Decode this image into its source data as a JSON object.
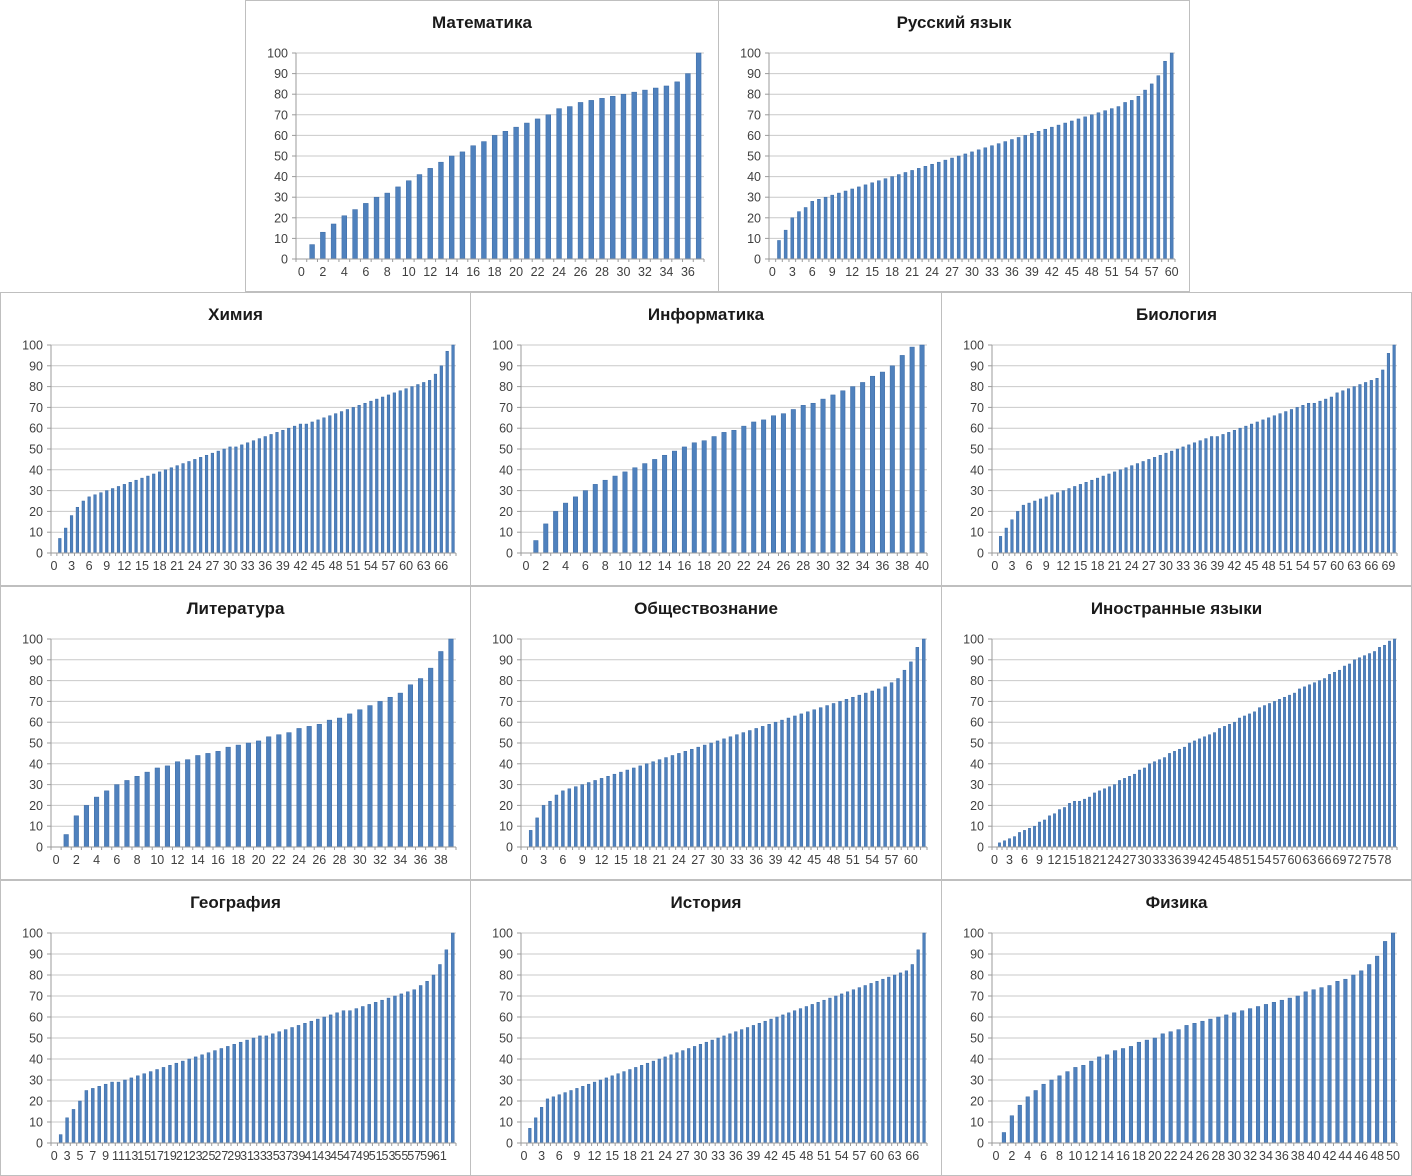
{
  "chart_defaults": {
    "bar_color": "#4f81bd",
    "bar_edge_color": "#3a6aa5",
    "gridline_color": "#c9c9c9",
    "axis_color": "#9b9b9b",
    "tick_label_color": "#3f3f3f",
    "title_color": "#1a1a1a",
    "ylim": [
      0,
      100
    ],
    "y_tick_step": 10,
    "grid": true,
    "legend": "none"
  },
  "chart_data": [
    {
      "type": "bar",
      "title": "Математика",
      "xlabel": "",
      "ylabel": "",
      "ylim": [
        0,
        100
      ],
      "x_tick_labels": [
        "0",
        "2",
        "4",
        "6",
        "8",
        "10",
        "12",
        "14",
        "16",
        "18",
        "20",
        "22",
        "24",
        "26",
        "28",
        "30",
        "32",
        "34",
        "36"
      ],
      "values": [
        0,
        7,
        13,
        17,
        21,
        24,
        27,
        30,
        32,
        35,
        38,
        41,
        44,
        47,
        50,
        52,
        55,
        57,
        60,
        62,
        64,
        66,
        68,
        70,
        73,
        74,
        76,
        77,
        78,
        79,
        80,
        81,
        82,
        83,
        84,
        86,
        90,
        100
      ]
    },
    {
      "type": "bar",
      "title": "Русский язык",
      "xlabel": "",
      "ylabel": "",
      "ylim": [
        0,
        100
      ],
      "x_tick_labels": [
        "0",
        "3",
        "6",
        "9",
        "12",
        "15",
        "18",
        "21",
        "24",
        "27",
        "30",
        "33",
        "36",
        "39",
        "42",
        "45",
        "48",
        "51",
        "54",
        "57",
        "60"
      ],
      "values": [
        0,
        9,
        14,
        20,
        23,
        25,
        28,
        29,
        30,
        31,
        32,
        33,
        34,
        35,
        36,
        37,
        38,
        39,
        40,
        41,
        42,
        43,
        44,
        45,
        46,
        47,
        48,
        49,
        50,
        51,
        52,
        53,
        54,
        55,
        56,
        57,
        58,
        59,
        60,
        61,
        62,
        63,
        64,
        65,
        66,
        67,
        68,
        69,
        70,
        71,
        72,
        73,
        74,
        76,
        77,
        79,
        82,
        85,
        89,
        96,
        100
      ]
    },
    {
      "type": "bar",
      "title": "Химия",
      "xlabel": "",
      "ylabel": "",
      "ylim": [
        0,
        100
      ],
      "x_tick_labels": [
        "0",
        "3",
        "6",
        "9",
        "12",
        "15",
        "18",
        "21",
        "24",
        "27",
        "30",
        "33",
        "36",
        "39",
        "42",
        "45",
        "48",
        "51",
        "54",
        "57",
        "60",
        "63",
        "66"
      ],
      "values": [
        0,
        7,
        12,
        18,
        22,
        25,
        27,
        28,
        29,
        30,
        31,
        32,
        33,
        34,
        35,
        36,
        37,
        38,
        39,
        40,
        41,
        42,
        43,
        44,
        45,
        46,
        47,
        48,
        49,
        50,
        51,
        51,
        52,
        53,
        54,
        55,
        56,
        57,
        58,
        59,
        60,
        61,
        62,
        62,
        63,
        64,
        65,
        66,
        67,
        68,
        69,
        70,
        71,
        72,
        73,
        74,
        75,
        76,
        77,
        78,
        79,
        80,
        81,
        82,
        83,
        86,
        90,
        97,
        100
      ]
    },
    {
      "type": "bar",
      "title": "Информатика",
      "xlabel": "",
      "ylabel": "",
      "ylim": [
        0,
        100
      ],
      "x_tick_labels": [
        "0",
        "2",
        "4",
        "6",
        "8",
        "10",
        "12",
        "14",
        "16",
        "18",
        "20",
        "22",
        "24",
        "26",
        "28",
        "30",
        "32",
        "34",
        "36",
        "38",
        "40"
      ],
      "values": [
        0,
        6,
        14,
        20,
        24,
        27,
        30,
        33,
        35,
        37,
        39,
        41,
        43,
        45,
        47,
        49,
        51,
        53,
        54,
        56,
        58,
        59,
        61,
        63,
        64,
        66,
        67,
        69,
        71,
        72,
        74,
        76,
        78,
        80,
        82,
        85,
        87,
        90,
        95,
        99,
        100
      ]
    },
    {
      "type": "bar",
      "title": "Биология",
      "xlabel": "",
      "ylabel": "",
      "ylim": [
        0,
        100
      ],
      "x_tick_labels": [
        "0",
        "3",
        "6",
        "9",
        "12",
        "15",
        "18",
        "21",
        "24",
        "27",
        "30",
        "33",
        "36",
        "39",
        "42",
        "45",
        "48",
        "51",
        "54",
        "57",
        "60",
        "63",
        "66",
        "69"
      ],
      "values": [
        0,
        8,
        12,
        16,
        20,
        23,
        24,
        25,
        26,
        27,
        28,
        29,
        30,
        31,
        32,
        33,
        34,
        35,
        36,
        37,
        38,
        39,
        40,
        41,
        42,
        43,
        44,
        45,
        46,
        47,
        48,
        49,
        50,
        51,
        52,
        53,
        54,
        55,
        56,
        56,
        57,
        58,
        59,
        60,
        61,
        62,
        63,
        64,
        65,
        66,
        67,
        68,
        69,
        70,
        71,
        72,
        72,
        73,
        74,
        75,
        77,
        78,
        79,
        80,
        81,
        82,
        83,
        84,
        88,
        96,
        100
      ]
    },
    {
      "type": "bar",
      "title": "Литература",
      "xlabel": "",
      "ylabel": "",
      "ylim": [
        0,
        100
      ],
      "x_tick_labels": [
        "0",
        "2",
        "4",
        "6",
        "8",
        "10",
        "12",
        "14",
        "16",
        "18",
        "20",
        "22",
        "24",
        "26",
        "28",
        "30",
        "32",
        "34",
        "36",
        "38"
      ],
      "values": [
        0,
        6,
        15,
        20,
        24,
        27,
        30,
        32,
        34,
        36,
        38,
        39,
        41,
        42,
        44,
        45,
        46,
        48,
        49,
        50,
        51,
        53,
        54,
        55,
        57,
        58,
        59,
        61,
        62,
        64,
        66,
        68,
        70,
        72,
        74,
        78,
        81,
        86,
        94,
        100
      ]
    },
    {
      "type": "bar",
      "title": "Обществознание",
      "xlabel": "",
      "ylabel": "",
      "ylim": [
        0,
        100
      ],
      "x_tick_labels": [
        "0",
        "3",
        "6",
        "9",
        "12",
        "15",
        "18",
        "21",
        "24",
        "27",
        "30",
        "33",
        "36",
        "39",
        "42",
        "45",
        "48",
        "51",
        "54",
        "57",
        "60"
      ],
      "values": [
        0,
        8,
        14,
        20,
        22,
        25,
        27,
        28,
        29,
        30,
        31,
        32,
        33,
        34,
        35,
        36,
        37,
        38,
        39,
        40,
        41,
        42,
        43,
        44,
        45,
        46,
        47,
        48,
        49,
        50,
        51,
        52,
        53,
        54,
        55,
        56,
        57,
        58,
        59,
        60,
        61,
        62,
        63,
        64,
        65,
        66,
        67,
        68,
        69,
        70,
        71,
        72,
        73,
        74,
        75,
        76,
        77,
        79,
        81,
        85,
        89,
        96,
        100
      ]
    },
    {
      "type": "bar",
      "title": "Иностранные языки",
      "xlabel": "",
      "ylabel": "",
      "ylim": [
        0,
        100
      ],
      "x_tick_labels": [
        "0",
        "3",
        "6",
        "9",
        "12",
        "15",
        "18",
        "21",
        "24",
        "27",
        "30",
        "33",
        "36",
        "39",
        "42",
        "45",
        "48",
        "51",
        "54",
        "57",
        "60",
        "63",
        "66",
        "69",
        "72",
        "75",
        "78"
      ],
      "values": [
        0,
        2,
        3,
        4,
        5,
        7,
        8,
        9,
        10,
        12,
        13,
        15,
        16,
        18,
        19,
        21,
        22,
        22,
        23,
        24,
        26,
        27,
        28,
        29,
        30,
        32,
        33,
        34,
        35,
        37,
        38,
        40,
        41,
        42,
        43,
        45,
        46,
        47,
        48,
        50,
        51,
        52,
        53,
        54,
        55,
        57,
        58,
        59,
        60,
        62,
        63,
        64,
        65,
        67,
        68,
        69,
        70,
        71,
        72,
        73,
        74,
        76,
        77,
        78,
        79,
        80,
        81,
        83,
        84,
        85,
        87,
        88,
        90,
        91,
        92,
        93,
        94,
        96,
        97,
        99,
        100
      ]
    },
    {
      "type": "bar",
      "title": "География",
      "xlabel": "",
      "ylabel": "",
      "ylim": [
        0,
        100
      ],
      "x_tick_labels": [
        "0",
        "3",
        "5",
        "7",
        "9",
        "11",
        "13",
        "15",
        "17",
        "19",
        "21",
        "23",
        "25",
        "27",
        "29",
        "31",
        "33",
        "35",
        "37",
        "39",
        "41",
        "43",
        "45",
        "47",
        "49",
        "51",
        "53",
        "55",
        "57",
        "59",
        "61"
      ],
      "values": [
        0,
        4,
        12,
        16,
        20,
        25,
        26,
        27,
        28,
        29,
        29,
        30,
        31,
        32,
        33,
        34,
        35,
        36,
        37,
        38,
        39,
        40,
        41,
        42,
        43,
        44,
        45,
        46,
        47,
        48,
        49,
        50,
        51,
        51,
        52,
        53,
        54,
        55,
        56,
        57,
        58,
        59,
        60,
        61,
        62,
        63,
        63,
        64,
        65,
        66,
        67,
        68,
        69,
        70,
        71,
        72,
        73,
        75,
        77,
        80,
        85,
        92,
        100
      ]
    },
    {
      "type": "bar",
      "title": "История",
      "xlabel": "",
      "ylabel": "",
      "ylim": [
        0,
        100
      ],
      "x_tick_labels": [
        "0",
        "3",
        "6",
        "9",
        "12",
        "15",
        "18",
        "21",
        "24",
        "27",
        "30",
        "33",
        "36",
        "39",
        "42",
        "45",
        "48",
        "51",
        "54",
        "57",
        "60",
        "63",
        "66"
      ],
      "values": [
        0,
        7,
        12,
        17,
        21,
        22,
        23,
        24,
        25,
        26,
        27,
        28,
        29,
        30,
        31,
        32,
        33,
        34,
        35,
        36,
        37,
        38,
        39,
        40,
        41,
        42,
        43,
        44,
        45,
        46,
        47,
        48,
        49,
        50,
        51,
        52,
        53,
        54,
        55,
        56,
        57,
        58,
        59,
        60,
        61,
        62,
        63,
        64,
        65,
        66,
        67,
        68,
        69,
        70,
        71,
        72,
        73,
        74,
        75,
        76,
        77,
        78,
        79,
        80,
        81,
        82,
        85,
        92,
        100
      ]
    },
    {
      "type": "bar",
      "title": "Физика",
      "xlabel": "",
      "ylabel": "",
      "ylim": [
        0,
        100
      ],
      "x_tick_labels": [
        "0",
        "2",
        "4",
        "6",
        "8",
        "10",
        "12",
        "14",
        "16",
        "18",
        "20",
        "22",
        "24",
        "26",
        "28",
        "30",
        "32",
        "34",
        "36",
        "38",
        "40",
        "42",
        "44",
        "46",
        "48",
        "50"
      ],
      "values": [
        0,
        5,
        13,
        18,
        22,
        25,
        28,
        30,
        32,
        34,
        36,
        37,
        39,
        41,
        42,
        44,
        45,
        46,
        48,
        49,
        50,
        52,
        53,
        54,
        56,
        57,
        58,
        59,
        60,
        61,
        62,
        63,
        64,
        65,
        66,
        67,
        68,
        69,
        70,
        72,
        73,
        74,
        75,
        77,
        78,
        80,
        82,
        85,
        89,
        96,
        100
      ]
    }
  ]
}
